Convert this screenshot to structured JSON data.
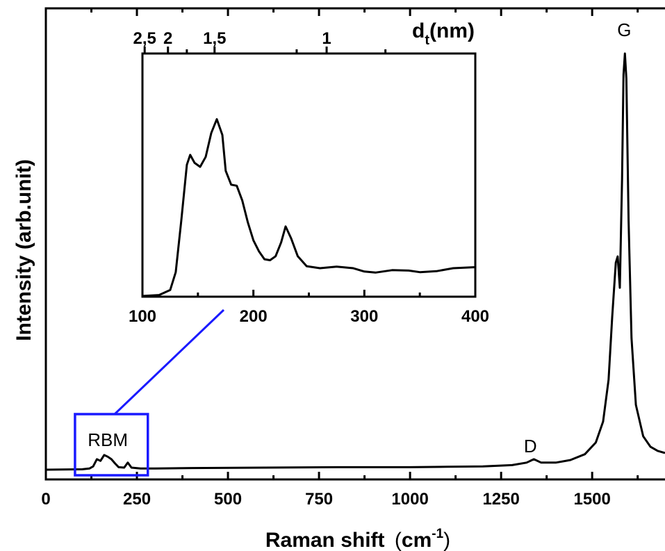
{
  "chart_data": [
    {
      "id": "main",
      "type": "line",
      "xlabel": "Raman shift",
      "xunit": "cm",
      "xunit_exp": "-1",
      "ylabel": "Intensity (arb.unit)",
      "xlim": [
        0,
        1700
      ],
      "ylim": [
        0,
        1
      ],
      "xticks_major": [
        0,
        250,
        500,
        750,
        1000,
        1250,
        1500
      ],
      "xtick_labels": [
        "0",
        "250",
        "500",
        "750",
        "1000",
        "1250",
        "1500"
      ],
      "xticks_minor": [
        125,
        375,
        625,
        875,
        1125,
        1375,
        1625
      ],
      "yticks_shown": false,
      "annotations": [
        {
          "text": "RBM",
          "x": 170
        },
        {
          "text": "D",
          "x": 1340
        },
        {
          "text": "G",
          "x": 1590
        }
      ],
      "highlight_box": {
        "x": [
          80,
          280
        ],
        "label": "RBM",
        "color": "#1a1aff"
      },
      "series": [
        {
          "points": [
            [
              0,
              0.005
            ],
            [
              100,
              0.006
            ],
            [
              120,
              0.008
            ],
            [
              130,
              0.013
            ],
            [
              140,
              0.03
            ],
            [
              150,
              0.026
            ],
            [
              160,
              0.04
            ],
            [
              170,
              0.036
            ],
            [
              180,
              0.03
            ],
            [
              190,
              0.02
            ],
            [
              200,
              0.011
            ],
            [
              215,
              0.01
            ],
            [
              225,
              0.022
            ],
            [
              235,
              0.01
            ],
            [
              260,
              0.008
            ],
            [
              300,
              0.008
            ],
            [
              400,
              0.009
            ],
            [
              600,
              0.01
            ],
            [
              800,
              0.011
            ],
            [
              1000,
              0.011
            ],
            [
              1100,
              0.012
            ],
            [
              1200,
              0.013
            ],
            [
              1280,
              0.016
            ],
            [
              1320,
              0.022
            ],
            [
              1340,
              0.03
            ],
            [
              1360,
              0.022
            ],
            [
              1400,
              0.022
            ],
            [
              1440,
              0.028
            ],
            [
              1480,
              0.042
            ],
            [
              1510,
              0.07
            ],
            [
              1530,
              0.12
            ],
            [
              1545,
              0.22
            ],
            [
              1555,
              0.37
            ],
            [
              1565,
              0.5
            ],
            [
              1570,
              0.515
            ],
            [
              1576,
              0.44
            ],
            [
              1582,
              0.7
            ],
            [
              1586,
              0.95
            ],
            [
              1590,
              1.0
            ],
            [
              1594,
              0.94
            ],
            [
              1600,
              0.6
            ],
            [
              1608,
              0.32
            ],
            [
              1620,
              0.16
            ],
            [
              1640,
              0.085
            ],
            [
              1660,
              0.06
            ],
            [
              1680,
              0.05
            ],
            [
              1700,
              0.045
            ]
          ]
        }
      ]
    },
    {
      "id": "inset",
      "type": "line",
      "xlim": [
        100,
        400
      ],
      "xticks_major": [
        100,
        200,
        300,
        400
      ],
      "xtick_labels": [
        "100",
        "200",
        "300",
        "400"
      ],
      "xticks_minor": [
        150,
        250,
        350
      ],
      "ylim": [
        0,
        1
      ],
      "top_axis_label": "d",
      "top_axis_sub": "t",
      "top_axis_unit": "(nm)",
      "top_ticks": [
        {
          "label": "2,5",
          "x": 102
        },
        {
          "label": "2",
          "x": 123
        },
        {
          "label": "",
          "x": 140
        },
        {
          "label": "1,5",
          "x": 165
        },
        {
          "label": "",
          "x": 239
        },
        {
          "label": "1",
          "x": 266
        },
        {
          "label": "",
          "x": 319
        }
      ],
      "series": [
        {
          "points": [
            [
              100,
              0.0
            ],
            [
              115,
              0.005
            ],
            [
              125,
              0.03
            ],
            [
              130,
              0.12
            ],
            [
              135,
              0.38
            ],
            [
              140,
              0.66
            ],
            [
              143,
              0.71
            ],
            [
              147,
              0.67
            ],
            [
              152,
              0.65
            ],
            [
              157,
              0.7
            ],
            [
              162,
              0.82
            ],
            [
              167,
              0.89
            ],
            [
              172,
              0.81
            ],
            [
              175,
              0.63
            ],
            [
              180,
              0.56
            ],
            [
              185,
              0.555
            ],
            [
              190,
              0.48
            ],
            [
              195,
              0.37
            ],
            [
              200,
              0.28
            ],
            [
              205,
              0.225
            ],
            [
              210,
              0.185
            ],
            [
              215,
              0.18
            ],
            [
              220,
              0.2
            ],
            [
              225,
              0.27
            ],
            [
              229,
              0.35
            ],
            [
              234,
              0.29
            ],
            [
              240,
              0.2
            ],
            [
              248,
              0.15
            ],
            [
              260,
              0.14
            ],
            [
              275,
              0.148
            ],
            [
              290,
              0.14
            ],
            [
              300,
              0.123
            ],
            [
              310,
              0.118
            ],
            [
              325,
              0.13
            ],
            [
              340,
              0.128
            ],
            [
              350,
              0.12
            ],
            [
              365,
              0.125
            ],
            [
              380,
              0.14
            ],
            [
              400,
              0.145
            ]
          ]
        }
      ]
    }
  ]
}
